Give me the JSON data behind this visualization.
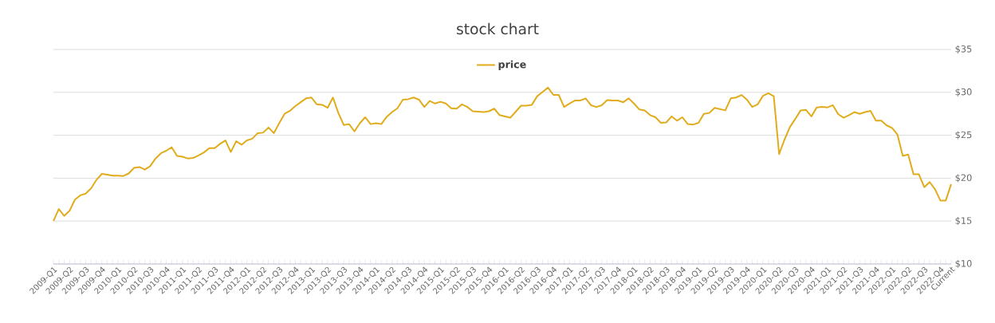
{
  "chart_data": {
    "type": "line",
    "title": "stock chart",
    "categories": [
      "2009-Q1",
      null,
      null,
      "2009-Q2",
      null,
      null,
      "2009-Q3",
      null,
      null,
      "2009-Q4",
      null,
      null,
      "2010-Q1",
      null,
      null,
      "2010-Q2",
      null,
      null,
      "2010-Q3",
      null,
      null,
      "2010-Q4",
      null,
      null,
      "2011-Q1",
      null,
      null,
      "2011-Q2",
      null,
      null,
      "2011-Q3",
      null,
      null,
      "2011-Q4",
      null,
      null,
      "2012-Q1",
      null,
      null,
      "2012-Q2",
      null,
      null,
      "2012-Q3",
      null,
      null,
      "2012-Q4",
      null,
      null,
      "2013-Q1",
      null,
      null,
      "2013-Q2",
      null,
      null,
      "2013-Q3",
      null,
      null,
      "2013-Q4",
      null,
      null,
      "2014-Q1",
      null,
      null,
      "2014-Q2",
      null,
      null,
      "2014-Q3",
      null,
      null,
      "2014-Q4",
      null,
      null,
      "2015-Q1",
      null,
      null,
      "2015-Q2",
      null,
      null,
      "2015-Q3",
      null,
      null,
      "2015-Q4",
      null,
      null,
      "2016-Q1",
      null,
      null,
      "2016-Q2",
      null,
      null,
      "2016-Q3",
      null,
      null,
      "2016-Q4",
      null,
      null,
      "2017-Q1",
      null,
      null,
      "2017-Q2",
      null,
      null,
      "2017-Q3",
      null,
      null,
      "2017-Q4",
      null,
      null,
      "2018-Q1",
      null,
      null,
      "2018-Q2",
      null,
      null,
      "2018-Q3",
      null,
      null,
      "2018-Q4",
      null,
      null,
      "2019-Q1",
      null,
      null,
      "2019-Q2",
      null,
      null,
      "2019-Q3",
      null,
      null,
      "2019-Q4",
      null,
      null,
      "2020-Q1",
      null,
      null,
      "2020-Q2",
      null,
      null,
      "2020-Q3",
      null,
      null,
      "2020-Q4",
      null,
      null,
      "2021-Q1",
      null,
      null,
      "2021-Q2",
      null,
      null,
      "2021-Q3",
      null,
      null,
      "2021-Q4",
      null,
      null,
      "2022-Q1",
      null,
      null,
      "2022-Q2",
      null,
      null,
      "2022-Q3",
      null,
      null,
      "2022-Q4",
      null,
      "Current"
    ],
    "series": [
      {
        "name": "price",
        "color": "#e0ac1c",
        "values": [
          15.0,
          16.4,
          15.6,
          16.2,
          17.5,
          18.0,
          18.2,
          18.8,
          19.8,
          20.5,
          20.4,
          20.3,
          20.3,
          20.25,
          20.55,
          21.2,
          21.3,
          21.0,
          21.4,
          22.3,
          22.9,
          23.2,
          23.6,
          22.6,
          22.5,
          22.3,
          22.35,
          22.65,
          23.0,
          23.5,
          23.5,
          24.0,
          24.4,
          23.05,
          24.3,
          23.9,
          24.4,
          24.6,
          25.25,
          25.3,
          25.9,
          25.25,
          26.4,
          27.5,
          27.85,
          28.4,
          28.85,
          29.3,
          29.4,
          28.6,
          28.55,
          28.2,
          29.4,
          27.6,
          26.2,
          26.3,
          25.45,
          26.4,
          27.1,
          26.3,
          26.4,
          26.3,
          27.15,
          27.7,
          28.15,
          29.15,
          29.2,
          29.4,
          29.15,
          28.3,
          29.0,
          28.7,
          28.9,
          28.7,
          28.15,
          28.1,
          28.6,
          28.3,
          27.8,
          27.75,
          27.7,
          27.8,
          28.1,
          27.35,
          27.2,
          27.05,
          27.75,
          28.45,
          28.45,
          28.55,
          29.55,
          30.05,
          30.55,
          29.7,
          29.7,
          28.3,
          28.7,
          29.05,
          29.05,
          29.3,
          28.5,
          28.3,
          28.5,
          29.1,
          29.05,
          29.05,
          28.85,
          29.3,
          28.7,
          28.0,
          27.9,
          27.35,
          27.1,
          26.45,
          26.5,
          27.2,
          26.7,
          27.1,
          26.3,
          26.25,
          26.45,
          27.5,
          27.6,
          28.2,
          28.05,
          27.9,
          29.3,
          29.4,
          29.7,
          29.15,
          28.3,
          28.6,
          29.6,
          29.9,
          29.55,
          22.8,
          24.5,
          25.95,
          26.9,
          27.9,
          27.95,
          27.2,
          28.25,
          28.3,
          28.25,
          28.5,
          27.45,
          27.05,
          27.35,
          27.7,
          27.5,
          27.7,
          27.85,
          26.7,
          26.7,
          26.15,
          25.85,
          25.1,
          22.6,
          22.75,
          20.45,
          20.45,
          18.95,
          19.55,
          18.7,
          17.4,
          17.4,
          19.3
        ]
      }
    ],
    "ylim": [
      10,
      35
    ],
    "yticks": [
      {
        "value": 10,
        "label": "$10"
      },
      {
        "value": 15,
        "label": "$15"
      },
      {
        "value": 20,
        "label": "$20"
      },
      {
        "value": 25,
        "label": "$25"
      },
      {
        "value": 30,
        "label": "$30"
      },
      {
        "value": 35,
        "label": "$35"
      }
    ],
    "grid": "y",
    "legend": "top",
    "marker": "none",
    "line_style": "solid"
  }
}
